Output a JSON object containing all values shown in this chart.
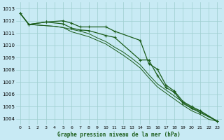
{
  "bg_color": "#c8eaf4",
  "grid_color": "#9ecece",
  "line_color": "#1a5c1a",
  "xlabel": "Graphe pression niveau de la mer (hPa)",
  "ylim": [
    1003.5,
    1013.5
  ],
  "xlim": [
    -0.5,
    23.5
  ],
  "yticks": [
    1004,
    1005,
    1006,
    1007,
    1008,
    1009,
    1010,
    1011,
    1012,
    1013
  ],
  "xticks": [
    0,
    1,
    2,
    3,
    4,
    5,
    6,
    7,
    8,
    9,
    10,
    11,
    12,
    13,
    14,
    15,
    16,
    17,
    18,
    19,
    20,
    21,
    22,
    23
  ],
  "line1_x": [
    0,
    1,
    3,
    5,
    6,
    7,
    8,
    10,
    11,
    14,
    15,
    16,
    17,
    18,
    19,
    20,
    21,
    23
  ],
  "line1_y": [
    1012.6,
    1011.7,
    1011.9,
    1012.0,
    1011.8,
    1011.5,
    1011.5,
    1011.5,
    1011.15,
    1010.4,
    1008.5,
    1008.05,
    1006.75,
    1006.25,
    1005.4,
    1005.0,
    1004.65,
    1003.8
  ],
  "line2_x": [
    0,
    1,
    3,
    5,
    6,
    7,
    8,
    10,
    11,
    14,
    15,
    16,
    17,
    18,
    19,
    20,
    21,
    23
  ],
  "line2_y": [
    1012.6,
    1011.7,
    1011.9,
    1011.75,
    1011.4,
    1011.25,
    1011.2,
    1010.8,
    1010.65,
    1008.8,
    1008.8,
    1007.55,
    1006.55,
    1006.15,
    1005.25,
    1004.85,
    1004.5,
    1003.8
  ],
  "line3_x": [
    0,
    1,
    2,
    3,
    4,
    5,
    6,
    7,
    8,
    9,
    10,
    11,
    12,
    13,
    14,
    15,
    16,
    17,
    18,
    19,
    20,
    21,
    22,
    23
  ],
  "line3_y": [
    1012.6,
    1011.7,
    1011.65,
    1011.6,
    1011.55,
    1011.45,
    1011.3,
    1011.15,
    1010.95,
    1010.6,
    1010.3,
    1009.85,
    1009.45,
    1008.95,
    1008.4,
    1007.6,
    1006.85,
    1006.35,
    1005.85,
    1005.35,
    1004.9,
    1004.6,
    1004.2,
    1003.8
  ],
  "line4_x": [
    0,
    1,
    2,
    3,
    4,
    5,
    6,
    7,
    8,
    9,
    10,
    11,
    12,
    13,
    14,
    15,
    16,
    17,
    18,
    19,
    20,
    21,
    22,
    23
  ],
  "line4_y": [
    1012.6,
    1011.7,
    1011.65,
    1011.6,
    1011.55,
    1011.45,
    1011.1,
    1010.9,
    1010.7,
    1010.4,
    1010.1,
    1009.65,
    1009.2,
    1008.7,
    1008.15,
    1007.35,
    1006.6,
    1006.1,
    1005.6,
    1005.1,
    1004.65,
    1004.35,
    1003.95,
    1003.8
  ]
}
